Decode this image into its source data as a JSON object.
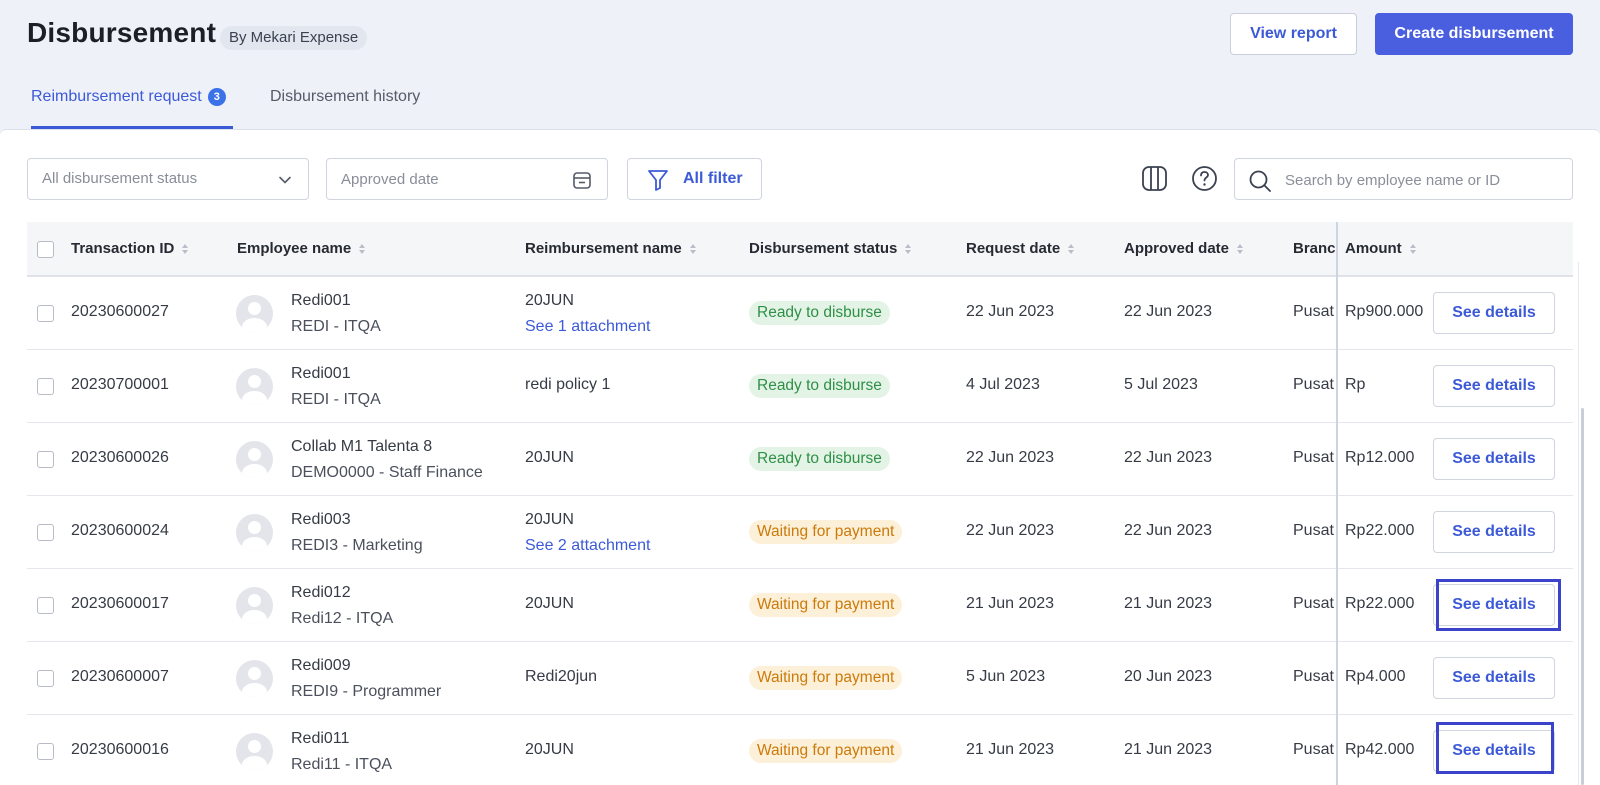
{
  "header": {
    "title": "Disbursement",
    "by_label": "By Mekari Expense",
    "view_report": "View report",
    "create_disbursement": "Create disbursement"
  },
  "tabs": [
    {
      "label": "Reimbursement request",
      "badge": "3",
      "active": true
    },
    {
      "label": "Disbursement history",
      "active": false
    }
  ],
  "filters": {
    "status_placeholder": "All disbursement status",
    "date_placeholder": "Approved date",
    "all_filter": "All filter",
    "search_placeholder": "Search by employee name or ID"
  },
  "table": {
    "columns": [
      "Transaction ID",
      "Employee name",
      "Reimbursement name",
      "Disbursement status",
      "Request date",
      "Approved date",
      "Branc",
      "Amount"
    ],
    "rows": [
      {
        "id": "20230600027",
        "name": "Redi001",
        "dept": "REDI - ITQA",
        "reimb": "20JUN",
        "attachment": "See 1 attachment",
        "status": "Ready to disburse",
        "status_type": "ready",
        "request": "22 Jun 2023",
        "approved": "22 Jun 2023",
        "branch": "Pusat",
        "amount": "Rp900.000",
        "action": "See details"
      },
      {
        "id": "20230700001",
        "name": "Redi001",
        "dept": "REDI - ITQA",
        "reimb": "redi policy 1",
        "attachment": "",
        "status": "Ready to disburse",
        "status_type": "ready",
        "request": "4 Jul 2023",
        "approved": "5 Jul 2023",
        "branch": "Pusat",
        "amount": "Rp",
        "action": "See details"
      },
      {
        "id": "20230600026",
        "name": "Collab M1 Talenta 8",
        "dept": "DEMO0000 - Staff Finance",
        "reimb": "20JUN",
        "attachment": "",
        "status": "Ready to disburse",
        "status_type": "ready",
        "request": "22 Jun 2023",
        "approved": "22 Jun 2023",
        "branch": "Pusat",
        "amount": "Rp12.000",
        "action": "See details"
      },
      {
        "id": "20230600024",
        "name": "Redi003",
        "dept": "REDI3 - Marketing",
        "reimb": "20JUN",
        "attachment": "See 2 attachment",
        "status": "Waiting for payment",
        "status_type": "wait",
        "request": "22 Jun 2023",
        "approved": "22 Jun 2023",
        "branch": "Pusat",
        "amount": "Rp22.000",
        "action": "See details"
      },
      {
        "id": "20230600017",
        "name": "Redi012",
        "dept": "Redi12 - ITQA",
        "reimb": "20JUN",
        "attachment": "",
        "status": "Waiting for payment",
        "status_type": "wait",
        "request": "21 Jun 2023",
        "approved": "21 Jun 2023",
        "branch": "Pusat",
        "amount": "Rp22.000",
        "action": "See details"
      },
      {
        "id": "20230600007",
        "name": "Redi009",
        "dept": "REDI9 - Programmer",
        "reimb": "Redi20jun",
        "attachment": "",
        "status": "Waiting for payment",
        "status_type": "wait",
        "request": "5 Jun 2023",
        "approved": "20 Jun 2023",
        "branch": "Pusat",
        "amount": "Rp4.000",
        "action": "See details"
      },
      {
        "id": "20230600016",
        "name": "Redi011",
        "dept": "Redi11 - ITQA",
        "reimb": "20JUN",
        "attachment": "",
        "status": "Waiting for payment",
        "status_type": "wait",
        "request": "21 Jun 2023",
        "approved": "21 Jun 2023",
        "branch": "Pusat",
        "amount": "Rp42.000",
        "action": "See details"
      }
    ]
  },
  "colors": {
    "accent": "#3c5ad8",
    "primary_button": "#4a5fe0",
    "ready": "#2f8f46",
    "waiting": "#cc7a0a",
    "highlight": "#3a43c9"
  },
  "icons": [
    "chevron-down-icon",
    "calendar-icon",
    "filter-icon",
    "columns-icon",
    "help-icon",
    "search-icon",
    "avatar-icon"
  ]
}
